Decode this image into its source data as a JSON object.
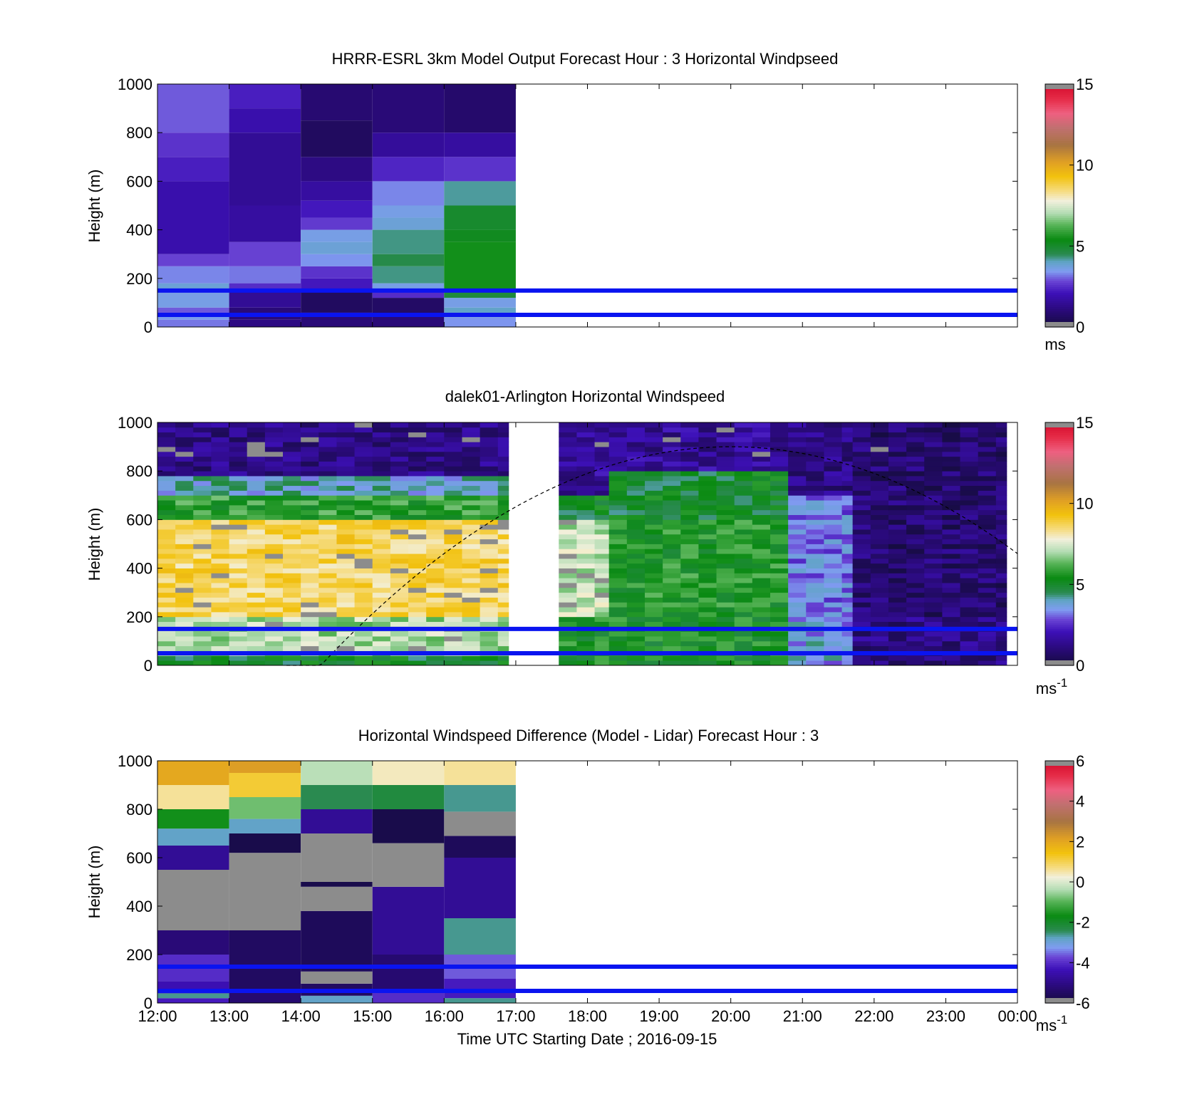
{
  "chart_data": [
    {
      "type": "heatmap",
      "title": "HRRR-ESRL 3km Model Output   Forecast Hour : 3 Horizontal Windpseed",
      "ylabel": "Height (m)",
      "ylim": [
        0,
        1000
      ],
      "yticks": [
        "0",
        "200",
        "400",
        "600",
        "800",
        "1000"
      ],
      "xlim_hours": [
        12,
        24
      ],
      "data_end_hour": 17,
      "colorbar": {
        "ticks": [
          "0",
          "5",
          "10",
          "15"
        ],
        "range": [
          0,
          15
        ],
        "unit": "ms"
      },
      "reference_lines_m": [
        50,
        150
      ],
      "columns": [
        {
          "start": 12,
          "end": 13,
          "layers": [
            {
              "from": 0,
              "to": 30,
              "value": 3.2
            },
            {
              "from": 30,
              "to": 50,
              "value": 3.5
            },
            {
              "from": 50,
              "to": 80,
              "value": 3.0
            },
            {
              "from": 80,
              "to": 150,
              "value": 3.6
            },
            {
              "from": 150,
              "to": 180,
              "value": 3.8
            },
            {
              "from": 180,
              "to": 250,
              "value": 3.3
            },
            {
              "from": 250,
              "to": 300,
              "value": 2.8
            },
            {
              "from": 300,
              "to": 600,
              "value": 1.9
            },
            {
              "from": 600,
              "to": 700,
              "value": 2.3
            },
            {
              "from": 700,
              "to": 800,
              "value": 2.6
            },
            {
              "from": 800,
              "to": 1000,
              "value": 3.0
            }
          ]
        },
        {
          "start": 13,
          "end": 14,
          "layers": [
            {
              "from": 0,
              "to": 30,
              "value": 1.2
            },
            {
              "from": 30,
              "to": 80,
              "value": 1.0
            },
            {
              "from": 80,
              "to": 150,
              "value": 1.5
            },
            {
              "from": 150,
              "to": 180,
              "value": 2.5
            },
            {
              "from": 180,
              "to": 250,
              "value": 3.2
            },
            {
              "from": 250,
              "to": 350,
              "value": 2.8
            },
            {
              "from": 350,
              "to": 500,
              "value": 1.7
            },
            {
              "from": 500,
              "to": 800,
              "value": 1.5
            },
            {
              "from": 800,
              "to": 900,
              "value": 1.9
            },
            {
              "from": 900,
              "to": 1000,
              "value": 2.3
            }
          ]
        },
        {
          "start": 14,
          "end": 15,
          "layers": [
            {
              "from": 0,
              "to": 60,
              "value": 1.0
            },
            {
              "from": 60,
              "to": 150,
              "value": 0.6
            },
            {
              "from": 150,
              "to": 200,
              "value": 2.2
            },
            {
              "from": 200,
              "to": 250,
              "value": 2.6
            },
            {
              "from": 250,
              "to": 300,
              "value": 3.4
            },
            {
              "from": 300,
              "to": 350,
              "value": 3.8
            },
            {
              "from": 350,
              "to": 400,
              "value": 3.6
            },
            {
              "from": 400,
              "to": 450,
              "value": 2.7
            },
            {
              "from": 450,
              "to": 520,
              "value": 2.2
            },
            {
              "from": 520,
              "to": 600,
              "value": 1.7
            },
            {
              "from": 600,
              "to": 700,
              "value": 1.2
            },
            {
              "from": 700,
              "to": 850,
              "value": 0.6
            },
            {
              "from": 850,
              "to": 1000,
              "value": 0.9
            }
          ]
        },
        {
          "start": 15,
          "end": 16,
          "layers": [
            {
              "from": 0,
              "to": 50,
              "value": 1.0
            },
            {
              "from": 50,
              "to": 120,
              "value": 0.7
            },
            {
              "from": 120,
              "to": 150,
              "value": 2.5
            },
            {
              "from": 150,
              "to": 180,
              "value": 3.6
            },
            {
              "from": 180,
              "to": 250,
              "value": 4.3
            },
            {
              "from": 250,
              "to": 300,
              "value": 4.6
            },
            {
              "from": 300,
              "to": 400,
              "value": 4.3
            },
            {
              "from": 400,
              "to": 450,
              "value": 3.8
            },
            {
              "from": 450,
              "to": 500,
              "value": 3.6
            },
            {
              "from": 500,
              "to": 600,
              "value": 3.3
            },
            {
              "from": 600,
              "to": 700,
              "value": 2.4
            },
            {
              "from": 700,
              "to": 800,
              "value": 1.6
            },
            {
              "from": 800,
              "to": 1000,
              "value": 1.0
            }
          ]
        },
        {
          "start": 16,
          "end": 17,
          "layers": [
            {
              "from": 0,
              "to": 40,
              "value": 3.4
            },
            {
              "from": 40,
              "to": 80,
              "value": 4.0
            },
            {
              "from": 80,
              "to": 120,
              "value": 3.6
            },
            {
              "from": 120,
              "to": 150,
              "value": 4.8
            },
            {
              "from": 150,
              "to": 350,
              "value": 5.5
            },
            {
              "from": 350,
              "to": 400,
              "value": 5.2
            },
            {
              "from": 400,
              "to": 500,
              "value": 5.0
            },
            {
              "from": 500,
              "to": 600,
              "value": 4.2
            },
            {
              "from": 600,
              "to": 700,
              "value": 2.6
            },
            {
              "from": 700,
              "to": 800,
              "value": 1.7
            },
            {
              "from": 800,
              "to": 1000,
              "value": 0.8
            }
          ]
        }
      ]
    },
    {
      "type": "heatmap",
      "title": "dalek01-Arlington  Horizontal Windspeed",
      "ylabel": "Height (m)",
      "ylim": [
        0,
        1000
      ],
      "yticks": [
        "0",
        "200",
        "400",
        "600",
        "800",
        "1000"
      ],
      "xlim_hours": [
        12,
        24
      ],
      "data_end_hour": 23.85,
      "gap_hours": [
        17.3,
        17.58
      ],
      "colorbar": {
        "ticks": [
          "0",
          "5",
          "10",
          "15"
        ],
        "range": [
          0,
          15
        ],
        "unit": "ms-1"
      },
      "reference_lines_m": [
        50,
        150
      ],
      "approx_profiles": [
        {
          "from": 12,
          "to": 16.9,
          "layers": [
            {
              "from": 0,
              "to": 30,
              "value": 5.0
            },
            {
              "from": 30,
              "to": 200,
              "value": 7.0
            },
            {
              "from": 200,
              "to": 600,
              "value": 8.7
            },
            {
              "from": 600,
              "to": 700,
              "value": 5.8
            },
            {
              "from": 700,
              "to": 780,
              "value": 4.0
            },
            {
              "from": 780,
              "to": 1000,
              "value": 1.2
            }
          ]
        },
        {
          "from": 17.6,
          "to": 18.3,
          "layers": [
            {
              "from": 0,
              "to": 200,
              "value": 5.5
            },
            {
              "from": 200,
              "to": 600,
              "value": 7.2
            },
            {
              "from": 600,
              "to": 700,
              "value": 5.0
            },
            {
              "from": 700,
              "to": 1000,
              "value": 1.5
            }
          ]
        },
        {
          "from": 18.3,
          "to": 20.8,
          "layers": [
            {
              "from": 0,
              "to": 200,
              "value": 5.4
            },
            {
              "from": 200,
              "to": 600,
              "value": 5.6
            },
            {
              "from": 600,
              "to": 800,
              "value": 5.0
            },
            {
              "from": 800,
              "to": 1000,
              "value": 1.5
            }
          ]
        },
        {
          "from": 20.8,
          "to": 21.7,
          "layers": [
            {
              "from": 0,
              "to": 200,
              "value": 3.6
            },
            {
              "from": 200,
              "to": 700,
              "value": 3.2
            },
            {
              "from": 700,
              "to": 1000,
              "value": 1.2
            }
          ]
        },
        {
          "from": 21.7,
          "to": 23.85,
          "layers": [
            {
              "from": 0,
              "to": 200,
              "value": 1.2
            },
            {
              "from": 200,
              "to": 1000,
              "value": 0.9
            }
          ]
        }
      ],
      "boundary_layer_curve": {
        "start_hour": 13.8,
        "end_hour": 24.0,
        "peak_hour": 20.0,
        "peak_m": 900,
        "end_m": 460
      }
    },
    {
      "type": "heatmap",
      "title": "Horizontal Windspeed Difference (Model - Lidar) Forecast Hour : 3",
      "xlabel": "Time UTC  Starting Date ; 2016-09-15",
      "ylabel": "Height (m)",
      "ylim": [
        0,
        1000
      ],
      "yticks": [
        "0",
        "200",
        "400",
        "600",
        "800",
        "1000"
      ],
      "xlim_hours": [
        12,
        24
      ],
      "xticks": [
        "12:00",
        "13:00",
        "14:00",
        "15:00",
        "16:00",
        "17:00",
        "18:00",
        "19:00",
        "20:00",
        "21:00",
        "22:00",
        "23:00",
        "00:00"
      ],
      "data_end_hour": 17,
      "colorbar": {
        "ticks": [
          "-6",
          "-4",
          "-2",
          "0",
          "2",
          "4",
          "6"
        ],
        "range": [
          -6,
          6
        ],
        "unit": "ms-1"
      },
      "reference_lines_m": [
        50,
        150
      ],
      "columns": [
        {
          "start": 12,
          "end": 13,
          "layers": [
            {
              "from": 0,
              "to": 20,
              "value": -4.2
            },
            {
              "from": 20,
              "to": 40,
              "value": -2.6
            },
            {
              "from": 40,
              "to": 90,
              "value": -4.4
            },
            {
              "from": 90,
              "to": 200,
              "value": -4.0
            },
            {
              "from": 200,
              "to": 300,
              "value": -5.2
            },
            {
              "from": 300,
              "to": 550,
              "value": null
            },
            {
              "from": 550,
              "to": 650,
              "value": -4.8
            },
            {
              "from": 650,
              "to": 720,
              "value": -2.8
            },
            {
              "from": 720,
              "to": 800,
              "value": -1.6
            },
            {
              "from": 800,
              "to": 900,
              "value": 0.6
            },
            {
              "from": 900,
              "to": 1000,
              "value": 2.0
            }
          ]
        },
        {
          "start": 13,
          "end": 14,
          "layers": [
            {
              "from": 0,
              "to": 50,
              "value": -5.3
            },
            {
              "from": 50,
              "to": 300,
              "value": -5.5
            },
            {
              "from": 300,
              "to": 620,
              "value": null
            },
            {
              "from": 620,
              "to": 700,
              "value": -5.8
            },
            {
              "from": 700,
              "to": 760,
              "value": -2.8
            },
            {
              "from": 760,
              "to": 850,
              "value": -0.8
            },
            {
              "from": 850,
              "to": 950,
              "value": 1.2
            },
            {
              "from": 950,
              "to": 1000,
              "value": 2.2
            }
          ]
        },
        {
          "start": 14,
          "end": 15,
          "layers": [
            {
              "from": 0,
              "to": 30,
              "value": -2.8
            },
            {
              "from": 30,
              "to": 80,
              "value": -5.5
            },
            {
              "from": 80,
              "to": 130,
              "value": null
            },
            {
              "from": 130,
              "to": 380,
              "value": -5.6
            },
            {
              "from": 380,
              "to": 480,
              "value": null
            },
            {
              "from": 480,
              "to": 500,
              "value": -5.8
            },
            {
              "from": 500,
              "to": 700,
              "value": null
            },
            {
              "from": 700,
              "to": 800,
              "value": -4.8
            },
            {
              "from": 800,
              "to": 900,
              "value": -2.4
            },
            {
              "from": 900,
              "to": 1000,
              "value": -0.3
            }
          ]
        },
        {
          "start": 15,
          "end": 16,
          "layers": [
            {
              "from": 0,
              "to": 50,
              "value": -4.0
            },
            {
              "from": 50,
              "to": 200,
              "value": -5.3
            },
            {
              "from": 200,
              "to": 480,
              "value": -4.8
            },
            {
              "from": 480,
              "to": 660,
              "value": null
            },
            {
              "from": 660,
              "to": 800,
              "value": -5.8
            },
            {
              "from": 800,
              "to": 900,
              "value": -2.2
            },
            {
              "from": 900,
              "to": 1000,
              "value": 0.4
            }
          ]
        },
        {
          "start": 16,
          "end": 17,
          "layers": [
            {
              "from": 0,
              "to": 20,
              "value": -2.6
            },
            {
              "from": 20,
              "to": 100,
              "value": -4.2
            },
            {
              "from": 100,
              "to": 200,
              "value": -3.6
            },
            {
              "from": 200,
              "to": 350,
              "value": -2.6
            },
            {
              "from": 350,
              "to": 600,
              "value": -4.8
            },
            {
              "from": 600,
              "to": 690,
              "value": -5.6
            },
            {
              "from": 690,
              "to": 790,
              "value": null
            },
            {
              "from": 790,
              "to": 900,
              "value": -2.6
            },
            {
              "from": 900,
              "to": 1000,
              "value": 0.6
            }
          ]
        }
      ]
    }
  ]
}
